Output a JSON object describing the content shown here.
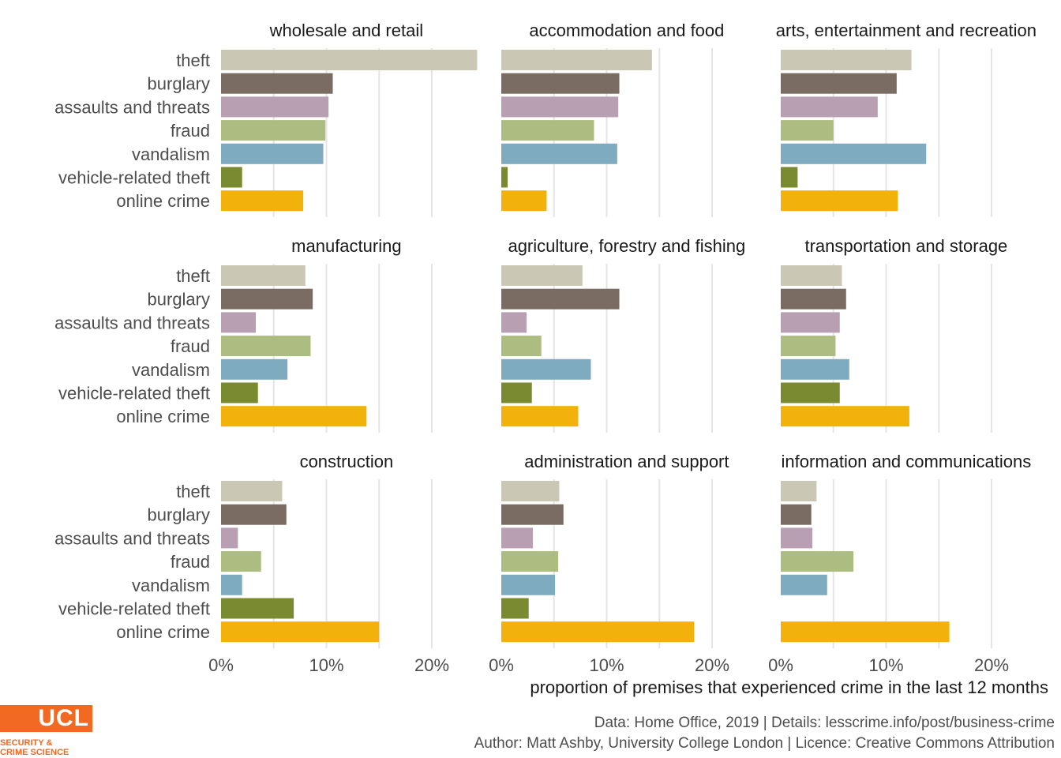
{
  "chart_data": {
    "type": "bar",
    "orientation": "horizontal",
    "categories": [
      "theft",
      "burglary",
      "assaults and threats",
      "fraud",
      "vandalism",
      "vehicle-related theft",
      "online crime"
    ],
    "colors": [
      "#cbc7b5",
      "#7a6c63",
      "#b89fb2",
      "#adbc80",
      "#7eabbf",
      "#7a8a30",
      "#f2b20b"
    ],
    "xlabel": "proportion of premises that experienced crime in the last 12 months",
    "xlim": [
      0,
      0.25
    ],
    "xticks": [
      0,
      0.1,
      0.2
    ],
    "xtick_labels": [
      "0%",
      "10%",
      "20%"
    ],
    "grid": true,
    "facets": [
      {
        "name": "wholesale and retail",
        "values": [
          0.243,
          0.106,
          0.102,
          0.099,
          0.097,
          0.02,
          0.078
        ]
      },
      {
        "name": "accommodation and food",
        "values": [
          0.143,
          0.112,
          0.111,
          0.088,
          0.11,
          0.006,
          0.043
        ]
      },
      {
        "name": "arts, entertainment and recreation",
        "values": [
          0.124,
          0.11,
          0.092,
          0.05,
          0.138,
          0.016,
          0.111
        ]
      },
      {
        "name": "manufacturing",
        "values": [
          0.08,
          0.087,
          0.033,
          0.085,
          0.063,
          0.035,
          0.138
        ]
      },
      {
        "name": "agriculture, forestry and fishing",
        "values": [
          0.077,
          0.112,
          0.024,
          0.038,
          0.085,
          0.029,
          0.073
        ]
      },
      {
        "name": "transportation and storage",
        "values": [
          0.058,
          0.062,
          0.056,
          0.052,
          0.065,
          0.056,
          0.122
        ]
      },
      {
        "name": "construction",
        "values": [
          0.058,
          0.062,
          0.016,
          0.038,
          0.02,
          0.069,
          0.15
        ]
      },
      {
        "name": "administration and support",
        "values": [
          0.055,
          0.059,
          0.03,
          0.054,
          0.051,
          0.026,
          0.183
        ]
      },
      {
        "name": "information and communications",
        "values": [
          0.034,
          0.029,
          0.03,
          0.069,
          0.044,
          0.0,
          0.16
        ]
      }
    ]
  },
  "caption": {
    "line1": "Data: Home Office, 2019 |  Details: lesscrime.info/post/business-crime",
    "line2": "Author: Matt Ashby, University College London |  Licence: Creative Commons Attribution"
  },
  "logo": {
    "text": "UCL",
    "sub1": "SECURITY &",
    "sub2": "CRIME SCIENCE",
    "color": "#f26a21"
  }
}
